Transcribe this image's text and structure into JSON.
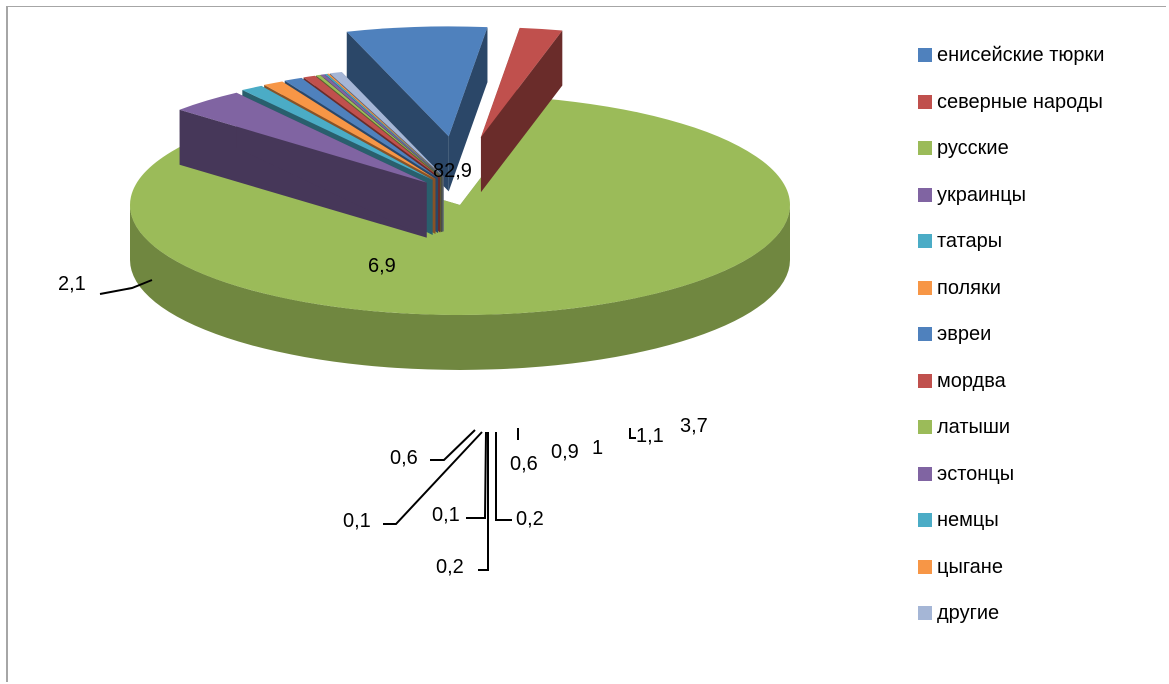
{
  "chart_data": {
    "type": "pie",
    "title": "",
    "style": "3d-exploded",
    "legend_position": "right",
    "slices": [
      {
        "name": "енисейские тюрки",
        "value": 6.9,
        "label": "6,9",
        "color": "#4f81bd"
      },
      {
        "name": "северные народы",
        "value": 2.1,
        "label": "2,1",
        "color": "#c0504d"
      },
      {
        "name": "русские",
        "value": 82.9,
        "label": "82,9",
        "color": "#9bbb59"
      },
      {
        "name": "украинцы",
        "value": 3.7,
        "label": "3,7",
        "color": "#8064a2"
      },
      {
        "name": "татары",
        "value": 1.1,
        "label": "1,1",
        "color": "#4bacc6"
      },
      {
        "name": "поляки",
        "value": 1,
        "label": "1",
        "color": "#f79646"
      },
      {
        "name": "эвреи",
        "value": 0.9,
        "label": "0,9",
        "color": "#4f81bd"
      },
      {
        "name": "мордва",
        "value": 0.6,
        "label": "0,6",
        "color": "#c0504d"
      },
      {
        "name": "латыши",
        "value": 0.2,
        "label": "0,2",
        "color": "#9bbb59"
      },
      {
        "name": "эстонцы",
        "value": 0.2,
        "label": "0,2",
        "color": "#8064a2"
      },
      {
        "name": "немцы",
        "value": 0.1,
        "label": "0,1",
        "color": "#4bacc6"
      },
      {
        "name": "цыгане",
        "value": 0.1,
        "label": "0,1",
        "color": "#f79646"
      },
      {
        "name": "другие",
        "value": 0.6,
        "label": "0,6",
        "color": "#a5b6d6"
      }
    ]
  }
}
